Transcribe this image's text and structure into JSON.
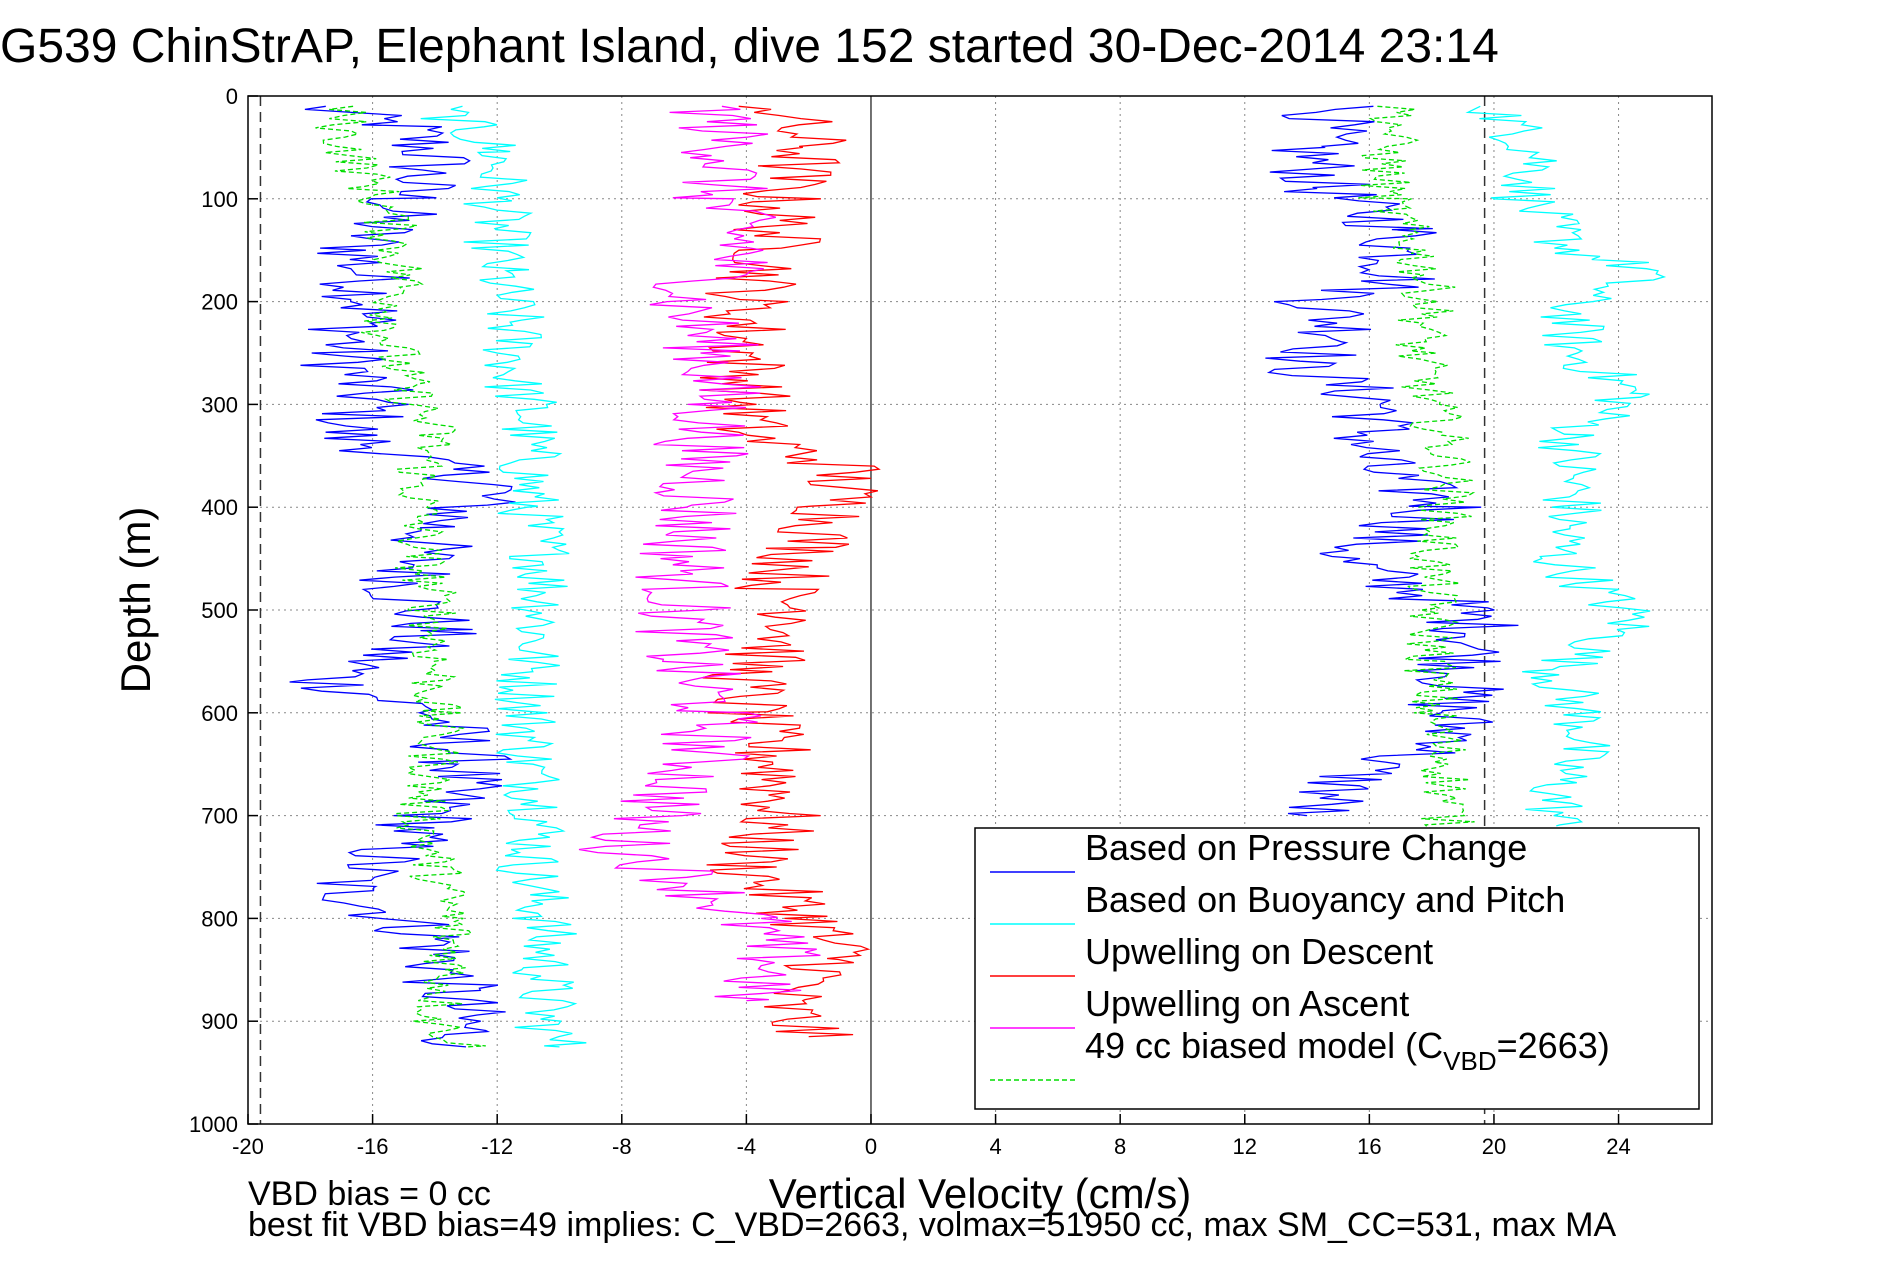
{
  "chart_data": {
    "type": "line",
    "title": "G539 ChinStrAP, Elephant Island, dive 152 started 30-Dec-2014 23:14",
    "xlabel": "Vertical Velocity (cm/s)",
    "ylabel": "Depth (m)",
    "xlim": [
      -20,
      27
    ],
    "ylim": [
      0,
      1000
    ],
    "y_reversed": true,
    "grid": true,
    "xticks": [
      "-20",
      "-16",
      "-12",
      "-8",
      "-4",
      "0",
      "4",
      "8",
      "12",
      "16",
      "20",
      "24"
    ],
    "xtick_values": [
      -20,
      -16,
      -12,
      -8,
      -4,
      0,
      4,
      8,
      12,
      16,
      20,
      24
    ],
    "yticks": [
      "0",
      "100",
      "200",
      "300",
      "400",
      "500",
      "600",
      "700",
      "800",
      "900",
      "1000"
    ],
    "ytick_values": [
      0,
      100,
      200,
      300,
      400,
      500,
      600,
      700,
      800,
      900,
      1000
    ],
    "vlines": [
      -19.6,
      0,
      19.7
    ],
    "legend_position": "bottom-right",
    "legend": [
      "Based on Pressure Change",
      "Based on Buoyancy and Pitch",
      "Upwelling on Descent",
      "Upwelling on Ascent",
      "49 cc biased model (C"
    ],
    "legend_sub": "VBD",
    "legend_tail": "=2663)",
    "series": [
      {
        "name": "Based on Pressure Change",
        "color": "#0000ff",
        "descent": [
          [
            10,
            -18
          ],
          [
            30,
            -15
          ],
          [
            60,
            -14
          ],
          [
            100,
            -15
          ],
          [
            150,
            -16.5
          ],
          [
            200,
            -16
          ],
          [
            250,
            -17
          ],
          [
            300,
            -16
          ],
          [
            330,
            -17
          ],
          [
            380,
            -12
          ],
          [
            420,
            -14
          ],
          [
            480,
            -15
          ],
          [
            520,
            -14
          ],
          [
            570,
            -17.5
          ],
          [
            600,
            -14
          ],
          [
            650,
            -13
          ],
          [
            700,
            -14
          ],
          [
            770,
            -17
          ],
          [
            820,
            -14
          ],
          [
            870,
            -13.5
          ],
          [
            910,
            -13
          ],
          [
            925,
            -13
          ]
        ],
        "ascent": [
          [
            10,
            15
          ],
          [
            50,
            14
          ],
          [
            90,
            14.5
          ],
          [
            130,
            17
          ],
          [
            180,
            17
          ],
          [
            200,
            14.5
          ],
          [
            240,
            15.5
          ],
          [
            260,
            13.5
          ],
          [
            300,
            16.5
          ],
          [
            330,
            16
          ],
          [
            360,
            16
          ],
          [
            400,
            18.5
          ],
          [
            450,
            15
          ],
          [
            500,
            19
          ],
          [
            520,
            19.5
          ],
          [
            600,
            18.5
          ],
          [
            630,
            19
          ],
          [
            650,
            16
          ],
          [
            700,
            14
          ]
        ]
      },
      {
        "name": "Based on Buoyancy and Pitch",
        "color": "#00ffff",
        "descent": [
          [
            10,
            -14
          ],
          [
            30,
            -13
          ],
          [
            55,
            -12
          ],
          [
            90,
            -12
          ],
          [
            130,
            -12
          ],
          [
            170,
            -12
          ],
          [
            220,
            -11.5
          ],
          [
            280,
            -11.5
          ],
          [
            300,
            -11
          ],
          [
            360,
            -11
          ],
          [
            400,
            -11
          ],
          [
            450,
            -10.5
          ],
          [
            500,
            -10.5
          ],
          [
            560,
            -11
          ],
          [
            600,
            -11
          ],
          [
            650,
            -11
          ],
          [
            700,
            -10.5
          ],
          [
            750,
            -11
          ],
          [
            800,
            -10.5
          ],
          [
            850,
            -10.5
          ],
          [
            900,
            -10.5
          ],
          [
            925,
            -10
          ]
        ],
        "ascent": [
          [
            10,
            20
          ],
          [
            60,
            21.5
          ],
          [
            100,
            21
          ],
          [
            150,
            22.5
          ],
          [
            170,
            25
          ],
          [
            200,
            22.5
          ],
          [
            250,
            22.5
          ],
          [
            290,
            24.5
          ],
          [
            330,
            22.5
          ],
          [
            400,
            22.5
          ],
          [
            450,
            22
          ],
          [
            510,
            24.5
          ],
          [
            560,
            22
          ],
          [
            620,
            23
          ],
          [
            670,
            22
          ],
          [
            710,
            22
          ]
        ]
      },
      {
        "name": "Upwelling on Descent",
        "color": "#ff0000",
        "descent": [
          [
            10,
            -3
          ],
          [
            50,
            -2
          ],
          [
            100,
            -3
          ],
          [
            150,
            -3
          ],
          [
            200,
            -4
          ],
          [
            250,
            -4
          ],
          [
            300,
            -4
          ],
          [
            330,
            -4
          ],
          [
            360,
            -1
          ],
          [
            400,
            -1
          ],
          [
            440,
            -2
          ],
          [
            480,
            -3
          ],
          [
            510,
            -2
          ],
          [
            560,
            -4
          ],
          [
            600,
            -4
          ],
          [
            650,
            -3
          ],
          [
            700,
            -3
          ],
          [
            750,
            -4
          ],
          [
            800,
            -2
          ],
          [
            840,
            -1
          ],
          [
            880,
            -3
          ],
          [
            915,
            -2
          ]
        ]
      },
      {
        "name": "Upwelling on Ascent",
        "color": "#ff00ff",
        "ascent": [
          [
            10,
            -5
          ],
          [
            60,
            -4.5
          ],
          [
            100,
            -5
          ],
          [
            150,
            -4
          ],
          [
            200,
            -6
          ],
          [
            250,
            -5
          ],
          [
            300,
            -5
          ],
          [
            350,
            -5.5
          ],
          [
            400,
            -5.5
          ],
          [
            450,
            -6
          ],
          [
            500,
            -6
          ],
          [
            550,
            -6
          ],
          [
            600,
            -5
          ],
          [
            650,
            -5.5
          ],
          [
            700,
            -7
          ],
          [
            730,
            -8
          ],
          [
            760,
            -6
          ],
          [
            800,
            -4
          ],
          [
            840,
            -3
          ],
          [
            880,
            -4
          ]
        ]
      },
      {
        "name": "49 cc biased model (C_VBD=2663)",
        "color": "#00dd00",
        "descent": [
          [
            10,
            -17
          ],
          [
            40,
            -17
          ],
          [
            90,
            -16
          ],
          [
            120,
            -15.5
          ],
          [
            180,
            -15
          ],
          [
            230,
            -15.5
          ],
          [
            280,
            -15
          ],
          [
            330,
            -14
          ],
          [
            370,
            -14.5
          ],
          [
            400,
            -14.5
          ],
          [
            450,
            -14.5
          ],
          [
            500,
            -14
          ],
          [
            550,
            -14
          ],
          [
            600,
            -14
          ],
          [
            650,
            -14
          ],
          [
            700,
            -14.5
          ],
          [
            750,
            -14
          ],
          [
            800,
            -13.5
          ],
          [
            850,
            -13.5
          ],
          [
            900,
            -14
          ],
          [
            925,
            -13
          ]
        ],
        "ascent": [
          [
            10,
            17
          ],
          [
            60,
            16.5
          ],
          [
            100,
            16.5
          ],
          [
            150,
            17.5
          ],
          [
            200,
            18
          ],
          [
            250,
            17.5
          ],
          [
            300,
            18
          ],
          [
            350,
            18.5
          ],
          [
            400,
            18.5
          ],
          [
            450,
            18
          ],
          [
            500,
            18
          ],
          [
            550,
            18
          ],
          [
            600,
            18
          ],
          [
            650,
            18.5
          ],
          [
            700,
            18.5
          ],
          [
            720,
            18.5
          ]
        ]
      }
    ]
  },
  "footer": {
    "line1": "VBD bias = 0 cc",
    "line2": "best fit VBD bias=49 implies: C_VBD=2663, volmax=51950 cc, max SM_CC=531, max MA"
  }
}
